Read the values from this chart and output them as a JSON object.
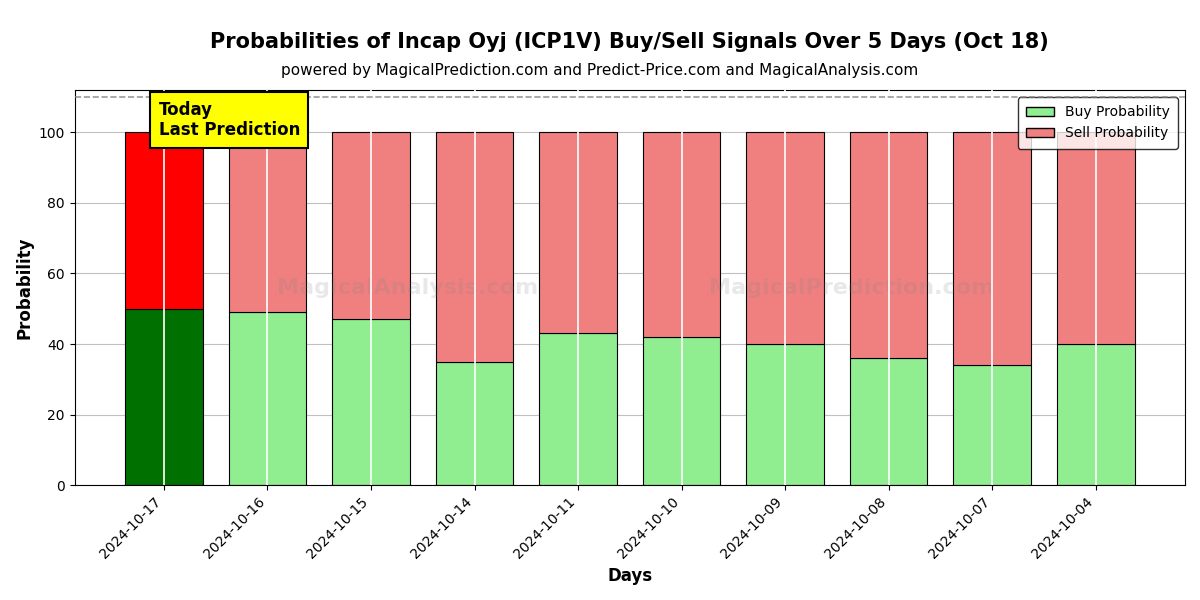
{
  "title": "Probabilities of Incap Oyj (ICP1V) Buy/Sell Signals Over 5 Days (Oct 18)",
  "subtitle": "powered by MagicalPrediction.com and Predict-Price.com and MagicalAnalysis.com",
  "xlabel": "Days",
  "ylabel": "Probability",
  "watermark_left": "MagicalAnalysis.com",
  "watermark_right": "MagicalPrediction.com",
  "dates": [
    "2024-10-17",
    "2024-10-16",
    "2024-10-15",
    "2024-10-14",
    "2024-10-11",
    "2024-10-10",
    "2024-10-09",
    "2024-10-08",
    "2024-10-07",
    "2024-10-04"
  ],
  "buy_probs": [
    50,
    49,
    47,
    35,
    43,
    42,
    40,
    36,
    34,
    40
  ],
  "sell_probs": [
    50,
    51,
    53,
    65,
    57,
    58,
    60,
    64,
    66,
    60
  ],
  "today_buy_color": "#007000",
  "today_sell_color": "#ff0000",
  "other_buy_color": "#90EE90",
  "other_sell_color": "#F08080",
  "bar_edge_color": "black",
  "today_annotation_text": "Today\nLast Prediction",
  "today_annotation_bg": "#ffff00",
  "ylim": [
    0,
    112
  ],
  "yticks": [
    0,
    20,
    40,
    60,
    80,
    100
  ],
  "dashed_line_y": 110,
  "legend_buy_label": "Buy Probability",
  "legend_sell_label": "Sell Probability",
  "title_fontsize": 15,
  "subtitle_fontsize": 11,
  "axis_label_fontsize": 12,
  "tick_label_fontsize": 10,
  "legend_fontsize": 10,
  "annotation_fontsize": 12,
  "bar_width": 0.75,
  "figsize": [
    12,
    6
  ],
  "dpi": 100,
  "background_color": "#ffffff",
  "grid_color": "#c0c0c0",
  "grid_alpha": 1.0
}
